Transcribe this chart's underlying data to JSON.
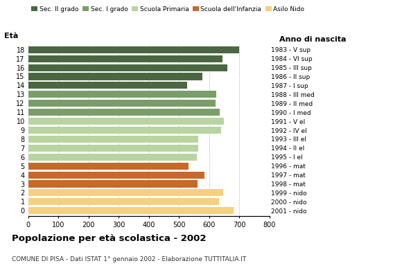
{
  "ages": [
    18,
    17,
    16,
    15,
    14,
    13,
    12,
    11,
    10,
    9,
    8,
    7,
    6,
    5,
    4,
    3,
    2,
    1,
    0
  ],
  "values": [
    700,
    645,
    660,
    578,
    528,
    625,
    622,
    635,
    650,
    640,
    563,
    563,
    560,
    533,
    585,
    562,
    648,
    632,
    682
  ],
  "anno_nascita": [
    "1983 - V sup",
    "1984 - VI sup",
    "1985 - III sup",
    "1986 - II sup",
    "1987 - I sup",
    "1988 - III med",
    "1989 - II med",
    "1990 - I med",
    "1991 - V el",
    "1992 - IV el",
    "1993 - III el",
    "1994 - II el",
    "1995 - I el",
    "1996 - mat",
    "1997 - mat",
    "1998 - mat",
    "1999 - nido",
    "2000 - nido",
    "2001 - nido"
  ],
  "colors": [
    "#4a6741",
    "#4a6741",
    "#4a6741",
    "#4a6741",
    "#4a6741",
    "#7a9e6a",
    "#7a9e6a",
    "#7a9e6a",
    "#b8d4a0",
    "#b8d4a0",
    "#b8d4a0",
    "#b8d4a0",
    "#b8d4a0",
    "#c8682a",
    "#c8682a",
    "#c8682a",
    "#f5d080",
    "#f5d080",
    "#f5d080"
  ],
  "legend_labels": [
    "Sec. II grado",
    "Sec. I grado",
    "Scuola Primaria",
    "Scuola dell'Infanzia",
    "Asilo Nido"
  ],
  "legend_colors": [
    "#4a6741",
    "#7a9e6a",
    "#b8d4a0",
    "#c8682a",
    "#f5d080"
  ],
  "title": "Popolazione per età scolastica - 2002",
  "subtitle": "COMUNE DI PISA - Dati ISTAT 1° gennaio 2002 - Elaborazione TUTTITALIA.IT",
  "xlabel_eta": "Età",
  "xlabel_anno": "Anno di nascita",
  "xlim": [
    0,
    800
  ],
  "xticks": [
    0,
    100,
    200,
    300,
    400,
    500,
    600,
    700,
    800
  ],
  "bar_height": 0.78,
  "background_color": "#ffffff",
  "grid_color": "#bbbbbb"
}
